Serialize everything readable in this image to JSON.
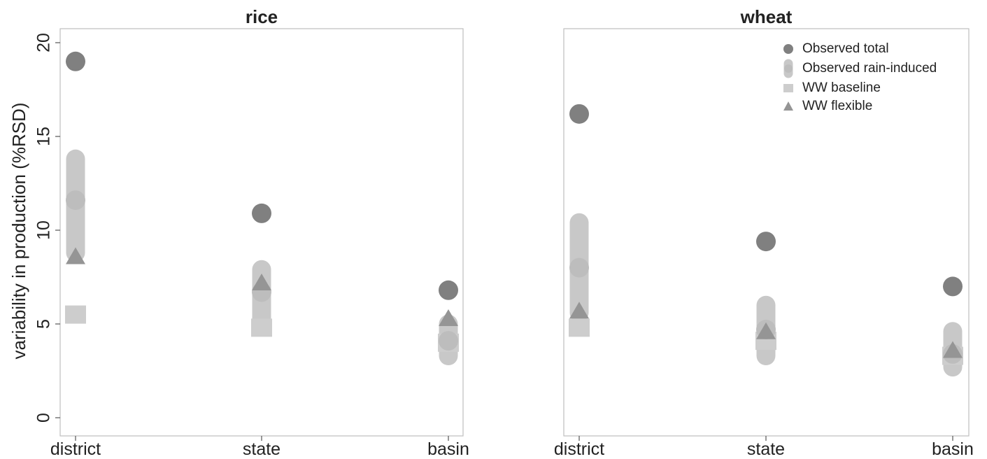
{
  "chart_data": [
    {
      "type": "scatter",
      "title": "rice",
      "ylabel": "variability in production (%RSD)",
      "categories": [
        "district",
        "state",
        "basin"
      ],
      "ylim": [
        0,
        20
      ],
      "yticks": [
        0,
        5,
        10,
        15,
        20
      ],
      "series": [
        {
          "name": "Observed total",
          "values": [
            19.0,
            10.9,
            6.8
          ]
        },
        {
          "name": "Observed rain-induced",
          "values": [
            11.6,
            6.7,
            4.1
          ],
          "range": [
            [
              8.8,
              13.8
            ],
            [
              5.0,
              7.9
            ],
            [
              3.3,
              5.0
            ]
          ]
        },
        {
          "name": "WW baseline",
          "values": [
            5.5,
            4.8,
            4.0
          ]
        },
        {
          "name": "WW flexible",
          "values": [
            8.6,
            7.2,
            5.3
          ]
        }
      ],
      "grid": false
    },
    {
      "type": "scatter",
      "title": "wheat",
      "ylabel": "",
      "categories": [
        "district",
        "state",
        "basin"
      ],
      "ylim": [
        0,
        20
      ],
      "series": [
        {
          "name": "Observed total",
          "values": [
            16.2,
            9.4,
            7.0
          ]
        },
        {
          "name": "Observed rain-induced",
          "values": [
            8.0,
            4.7,
            3.4
          ],
          "range": [
            [
              5.6,
              10.4
            ],
            [
              3.3,
              6.0
            ],
            [
              2.7,
              4.6
            ]
          ]
        },
        {
          "name": "WW baseline",
          "values": [
            4.8,
            4.1,
            3.3
          ]
        },
        {
          "name": "WW flexible",
          "values": [
            5.7,
            4.6,
            3.6
          ]
        }
      ],
      "legend": {
        "placement": "top-right",
        "entries": [
          "Observed total",
          "Observed rain-induced",
          "WW baseline",
          "WW flexible"
        ]
      },
      "grid": false
    }
  ],
  "colors": {
    "observed_total": "#808080",
    "observed_rain_induced": "#c8c8c8",
    "ww_baseline": "#cdcdcd",
    "ww_flexible": "#959595",
    "axis": "#bfbfbf",
    "text": "#222222"
  }
}
